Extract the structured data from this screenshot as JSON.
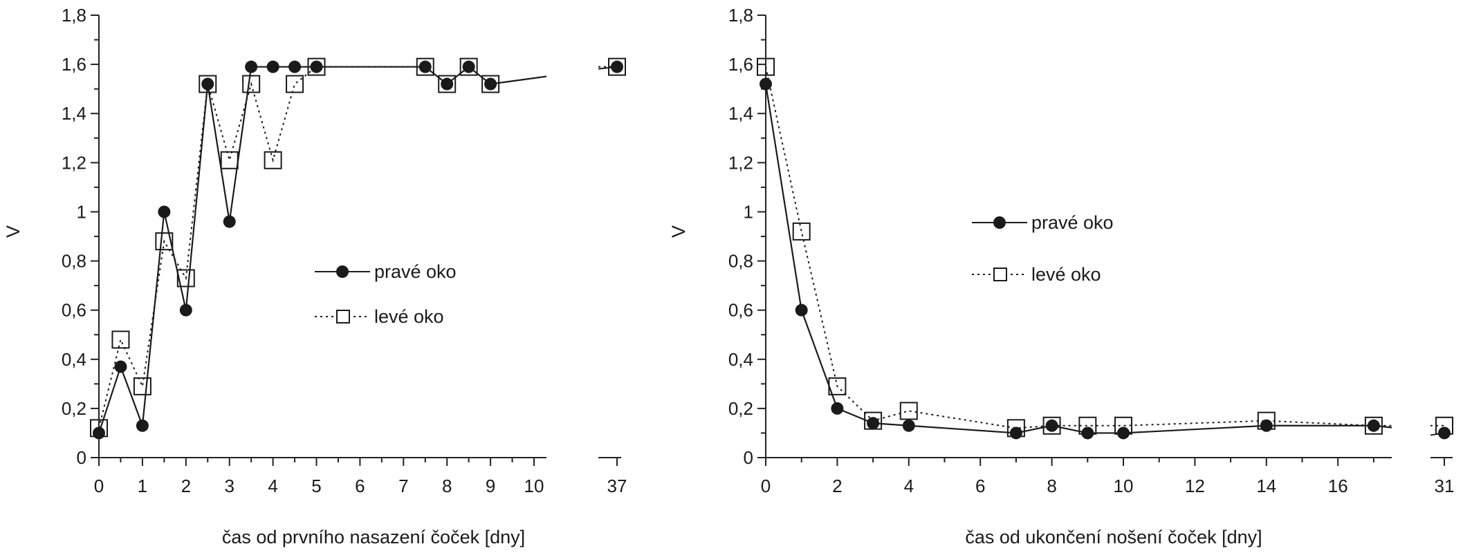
{
  "chart_data": [
    {
      "type": "line",
      "xlabel": "čas od prvního nasazení čoček [dny]",
      "ylabel": "V",
      "ylim": [
        0,
        1.8
      ],
      "yticks": [
        "0",
        "0,2",
        "0,4",
        "0,6",
        "0,8",
        "1",
        "1,2",
        "1,4",
        "1,6",
        "1,8"
      ],
      "xticks": [
        "0",
        "1",
        "2",
        "3",
        "4",
        "5",
        "6",
        "7",
        "8",
        "9",
        "10",
        "37"
      ],
      "axis_break": "between 10 and 37",
      "legend_position": "center-right",
      "series": [
        {
          "name": "pravé oko",
          "line": "solid",
          "marker": "filled circle",
          "x": [
            0,
            0.5,
            1,
            1.5,
            2,
            2.5,
            3,
            3.5,
            4,
            4.5,
            5,
            7.5,
            8,
            8.5,
            9,
            37
          ],
          "y": [
            0.1,
            0.37,
            0.13,
            1.0,
            0.6,
            1.52,
            0.96,
            1.59,
            1.59,
            1.59,
            1.59,
            1.59,
            1.52,
            1.59,
            1.52,
            1.59
          ]
        },
        {
          "name": "levé oko",
          "line": "dotted",
          "marker": "open square",
          "x": [
            0,
            0.5,
            1,
            1.5,
            2,
            2.5,
            3,
            3.5,
            4,
            4.5,
            5,
            7.5,
            8,
            8.5,
            9,
            37
          ],
          "y": [
            0.12,
            0.48,
            0.29,
            0.88,
            0.73,
            1.52,
            1.21,
            1.52,
            1.21,
            1.52,
            1.59,
            1.59,
            1.52,
            1.59,
            1.52,
            1.59
          ]
        }
      ]
    },
    {
      "type": "line",
      "xlabel": "čas od ukončení nošení čoček [dny]",
      "ylabel": "V",
      "ylim": [
        0,
        1.8
      ],
      "yticks": [
        "0",
        "0,2",
        "0,4",
        "0,6",
        "0,8",
        "1",
        "1,2",
        "1,4",
        "1,6",
        "1,8"
      ],
      "xticks": [
        "0",
        "2",
        "4",
        "6",
        "8",
        "10",
        "12",
        "14",
        "16",
        "31"
      ],
      "axis_break": "between 17 and 31",
      "legend_position": "upper-center",
      "series": [
        {
          "name": "pravé oko",
          "line": "solid",
          "marker": "filled circle",
          "x": [
            0,
            1,
            2,
            3,
            4,
            7,
            8,
            9,
            10,
            14,
            17,
            31
          ],
          "y": [
            1.52,
            0.6,
            0.2,
            0.14,
            0.13,
            0.1,
            0.13,
            0.1,
            0.1,
            0.13,
            0.13,
            0.1
          ]
        },
        {
          "name": "levé oko",
          "line": "dotted",
          "marker": "open square",
          "x": [
            0,
            1,
            2,
            3,
            4,
            7,
            8,
            9,
            10,
            14,
            17,
            31
          ],
          "y": [
            1.59,
            0.92,
            0.29,
            0.15,
            0.19,
            0.12,
            0.13,
            0.13,
            0.13,
            0.15,
            0.13,
            0.13
          ]
        }
      ]
    }
  ]
}
